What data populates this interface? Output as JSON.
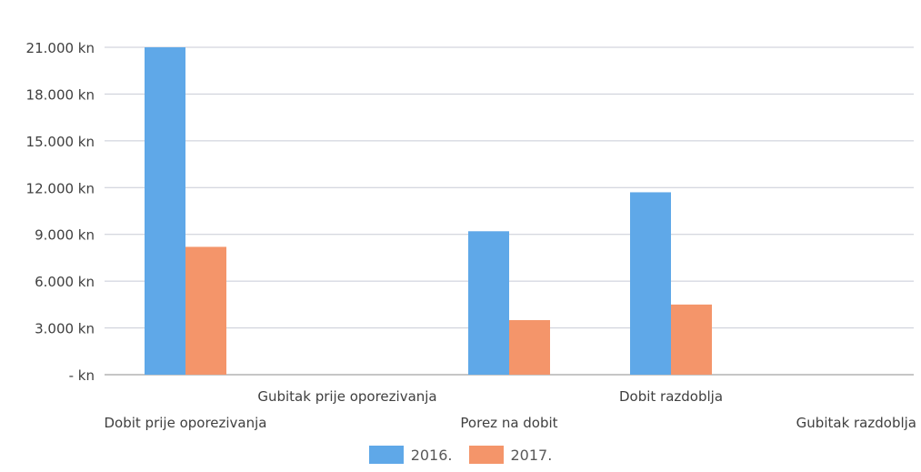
{
  "chart_data": {
    "type": "bar",
    "categories": [
      "Dobit prije oporezivanja",
      "Gubitak prije oporezivanja",
      "Porez na dobit",
      "Dobit razdoblja",
      "Gubitak razdoblja"
    ],
    "series": [
      {
        "name": "2016.",
        "color": "#5fa8e8",
        "values": [
          21000,
          0,
          9200,
          11700,
          0
        ]
      },
      {
        "name": "2017.",
        "color": "#f4956a",
        "values": [
          8200,
          0,
          3500,
          4500,
          0
        ]
      }
    ],
    "y_ticks": [
      0,
      3000,
      6000,
      9000,
      12000,
      15000,
      18000,
      21000
    ],
    "y_tick_labels": [
      "- kn",
      "3.000 kn",
      "6.000 kn",
      "9.000 kn",
      "12.000 kn",
      "15.000 kn",
      "18.000 kn",
      "21.000 kn"
    ],
    "ylim": [
      0,
      21000
    ],
    "grid": true,
    "legend_position": "bottom"
  }
}
